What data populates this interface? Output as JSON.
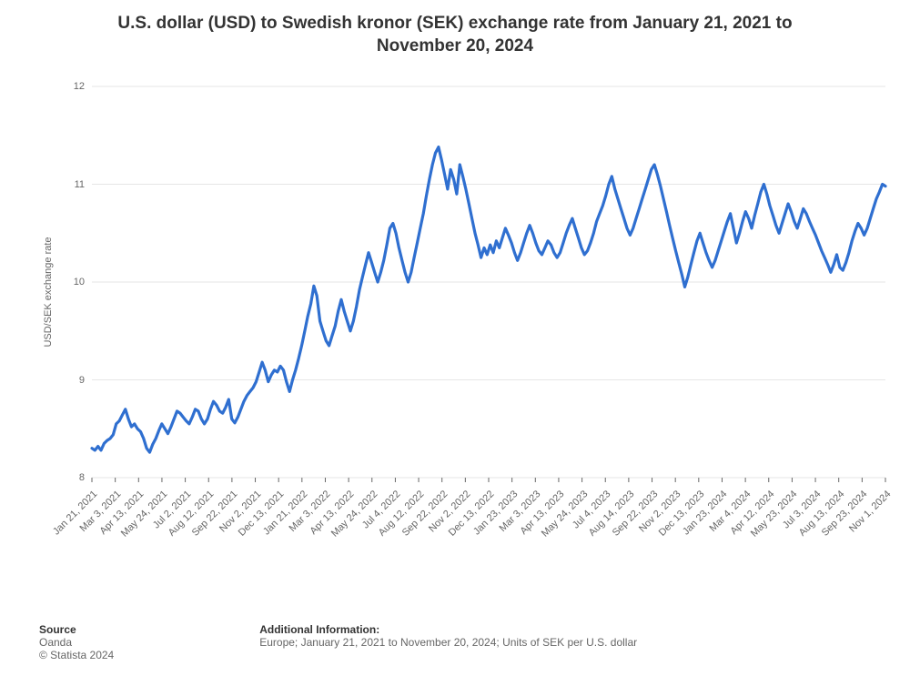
{
  "title_line1": "U.S. dollar (USD) to Swedish kronor (SEK) exchange rate from January 21, 2021 to",
  "title_line2": "November 20, 2024",
  "title_fontsize": 19,
  "chart": {
    "type": "line",
    "ylabel": "USD/SEK exchange rate",
    "ylabel_fontsize": 11,
    "ylim": [
      8,
      12
    ],
    "yticks": [
      8,
      9,
      10,
      11,
      12
    ],
    "ytick_fontsize": 11,
    "tick_color": "#666666",
    "grid_color": "#e6e6e6",
    "grid_width": 1,
    "background_color": "#ffffff",
    "line_color": "#2f6fd0",
    "line_width": 3.2,
    "xtick_fontsize": 11,
    "x_labels": [
      "Jan 21, 2021",
      "Mar 3, 2021",
      "Apr 13, 2021",
      "May 24, 2021",
      "Jul 2, 2021",
      "Aug 12, 2021",
      "Sep 22, 2021",
      "Nov 2, 2021",
      "Dec 13, 2021",
      "Jan 21, 2022",
      "Mar 3, 2022",
      "Apr 13, 2022",
      "May 24, 2022",
      "Jul 4, 2022",
      "Aug 12, 2022",
      "Sep 22, 2022",
      "Nov 2, 2022",
      "Dec 13, 2022",
      "Jan 23, 2023",
      "Mar 3, 2023",
      "Apr 13, 2023",
      "May 24, 2023",
      "Jul 4, 2023",
      "Aug 14, 2023",
      "Sep 22, 2023",
      "Nov 2, 2023",
      "Dec 13, 2023",
      "Jan 23, 2024",
      "Mar 4, 2024",
      "Apr 12, 2024",
      "May 23, 2024",
      "Jul 3, 2024",
      "Aug 13, 2024",
      "Sep 23, 2024",
      "Nov 1, 2024"
    ],
    "series": [
      8.3,
      8.28,
      8.32,
      8.28,
      8.35,
      8.38,
      8.4,
      8.44,
      8.55,
      8.58,
      8.64,
      8.7,
      8.6,
      8.52,
      8.55,
      8.5,
      8.47,
      8.4,
      8.3,
      8.26,
      8.34,
      8.4,
      8.48,
      8.55,
      8.5,
      8.45,
      8.52,
      8.6,
      8.68,
      8.66,
      8.62,
      8.58,
      8.55,
      8.62,
      8.7,
      8.68,
      8.6,
      8.55,
      8.6,
      8.7,
      8.78,
      8.74,
      8.68,
      8.66,
      8.72,
      8.8,
      8.6,
      8.56,
      8.62,
      8.7,
      8.78,
      8.84,
      8.88,
      8.92,
      8.98,
      9.08,
      9.18,
      9.1,
      8.98,
      9.05,
      9.1,
      9.08,
      9.14,
      9.1,
      8.98,
      8.88,
      9.0,
      9.1,
      9.22,
      9.35,
      9.5,
      9.65,
      9.78,
      9.96,
      9.86,
      9.6,
      9.5,
      9.4,
      9.35,
      9.45,
      9.55,
      9.7,
      9.82,
      9.7,
      9.6,
      9.5,
      9.6,
      9.75,
      9.92,
      10.05,
      10.18,
      10.3,
      10.2,
      10.1,
      10.0,
      10.1,
      10.22,
      10.38,
      10.55,
      10.6,
      10.5,
      10.35,
      10.22,
      10.1,
      10.0,
      10.1,
      10.25,
      10.4,
      10.55,
      10.7,
      10.88,
      11.05,
      11.2,
      11.32,
      11.38,
      11.25,
      11.1,
      10.95,
      11.15,
      11.05,
      10.9,
      11.2,
      11.08,
      10.95,
      10.8,
      10.65,
      10.5,
      10.38,
      10.25,
      10.35,
      10.28,
      10.38,
      10.3,
      10.42,
      10.35,
      10.45,
      10.55,
      10.48,
      10.4,
      10.3,
      10.22,
      10.3,
      10.4,
      10.5,
      10.58,
      10.5,
      10.4,
      10.32,
      10.28,
      10.35,
      10.42,
      10.38,
      10.3,
      10.25,
      10.3,
      10.4,
      10.5,
      10.58,
      10.65,
      10.55,
      10.45,
      10.35,
      10.28,
      10.32,
      10.4,
      10.5,
      10.62,
      10.7,
      10.78,
      10.88,
      11.0,
      11.08,
      10.95,
      10.85,
      10.75,
      10.65,
      10.55,
      10.48,
      10.55,
      10.65,
      10.75,
      10.85,
      10.95,
      11.05,
      11.15,
      11.2,
      11.1,
      10.98,
      10.85,
      10.72,
      10.58,
      10.45,
      10.32,
      10.2,
      10.08,
      9.95,
      10.05,
      10.18,
      10.3,
      10.42,
      10.5,
      10.4,
      10.3,
      10.22,
      10.15,
      10.22,
      10.32,
      10.42,
      10.52,
      10.62,
      10.7,
      10.55,
      10.4,
      10.5,
      10.62,
      10.72,
      10.65,
      10.55,
      10.68,
      10.8,
      10.92,
      11.0,
      10.9,
      10.78,
      10.68,
      10.58,
      10.5,
      10.6,
      10.7,
      10.8,
      10.72,
      10.62,
      10.55,
      10.65,
      10.75,
      10.7,
      10.62,
      10.55,
      10.48,
      10.4,
      10.32,
      10.25,
      10.18,
      10.1,
      10.18,
      10.28,
      10.15,
      10.12,
      10.2,
      10.3,
      10.42,
      10.52,
      10.6,
      10.55,
      10.48,
      10.55,
      10.65,
      10.75,
      10.85,
      10.92,
      11.0,
      10.98
    ]
  },
  "footer": {
    "source_heading": "Source",
    "source_text": "Oanda",
    "copyright": "© Statista 2024",
    "info_heading": "Additional Information:",
    "info_text": "Europe; January 21, 2021 to November 20, 2024; Units of SEK per U.S. dollar",
    "fontsize": 12
  }
}
